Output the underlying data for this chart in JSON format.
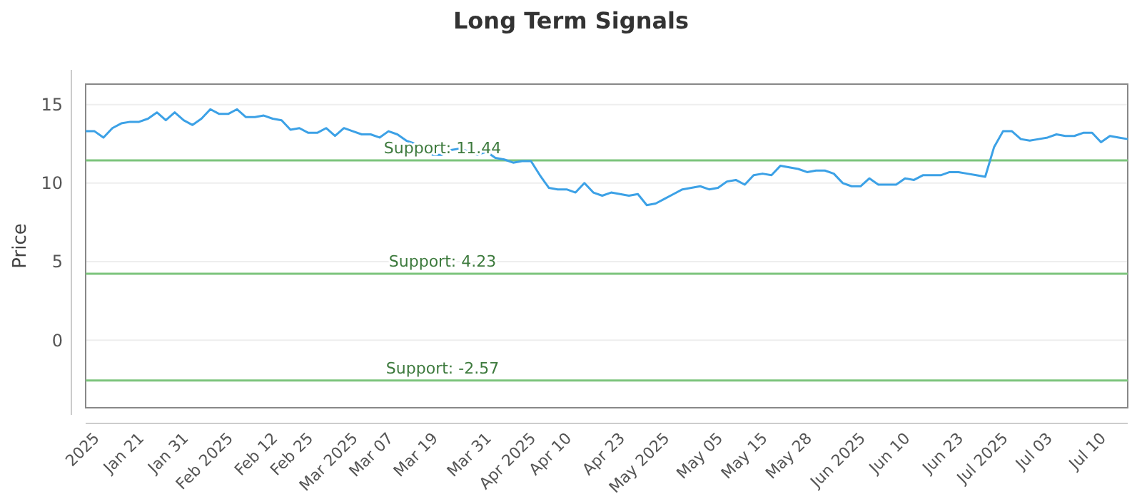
{
  "chart_data": {
    "type": "line",
    "title": "Long Term Signals",
    "ylabel": "Price",
    "categories": [
      null,
      "2025",
      null,
      null,
      null,
      null,
      "Jan 21",
      null,
      null,
      null,
      null,
      "Jan 31",
      null,
      null,
      null,
      null,
      "Feb 2025",
      null,
      null,
      null,
      null,
      "Feb 12",
      null,
      null,
      null,
      "Feb 25",
      null,
      null,
      null,
      null,
      "Mar 2025",
      null,
      null,
      null,
      "Mar 07",
      null,
      null,
      null,
      null,
      "Mar 19",
      null,
      null,
      null,
      null,
      null,
      "Mar 31",
      null,
      null,
      null,
      null,
      "Apr 2025",
      null,
      null,
      null,
      "Apr 10",
      null,
      null,
      null,
      null,
      null,
      "Apr 23",
      null,
      null,
      null,
      null,
      "May 2025",
      null,
      null,
      null,
      null,
      null,
      "May 05",
      null,
      null,
      null,
      null,
      "May 15",
      null,
      null,
      null,
      null,
      "May 28",
      null,
      null,
      null,
      null,
      null,
      "Jun 2025",
      null,
      null,
      null,
      null,
      "Jun 10",
      null,
      null,
      null,
      null,
      null,
      "Jun 23",
      null,
      null,
      null,
      null,
      "Jul 2025",
      null,
      null,
      null,
      null,
      "Jul 03",
      null,
      null,
      null,
      null,
      null,
      "Jul 10",
      null,
      null,
      null
    ],
    "series": [
      {
        "color": "#3ca1e6",
        "values": [
          13.3,
          13.3,
          12.9,
          13.5,
          13.8,
          13.9,
          13.9,
          14.1,
          14.5,
          14.0,
          14.5,
          14.0,
          13.7,
          14.1,
          14.7,
          14.4,
          14.4,
          14.7,
          14.2,
          14.2,
          14.3,
          14.1,
          14.0,
          13.4,
          13.5,
          13.2,
          13.2,
          13.5,
          13.0,
          13.5,
          13.3,
          13.1,
          13.1,
          12.9,
          13.3,
          13.1,
          12.7,
          12.5,
          12.2,
          11.8,
          11.8,
          12.1,
          12.2,
          12.0,
          11.8,
          12.0,
          11.6,
          11.5,
          11.3,
          11.4,
          11.4,
          10.5,
          9.7,
          9.6,
          9.6,
          9.4,
          10.0,
          9.4,
          9.2,
          9.4,
          9.3,
          9.2,
          9.3,
          8.6,
          8.7,
          9.0,
          9.3,
          9.6,
          9.7,
          9.8,
          9.6,
          9.7,
          10.1,
          10.2,
          9.9,
          10.5,
          10.6,
          10.5,
          11.1,
          11.0,
          10.9,
          10.7,
          10.8,
          10.8,
          10.6,
          10.0,
          9.8,
          9.8,
          10.3,
          9.9,
          9.9,
          9.9,
          10.3,
          10.2,
          10.5,
          10.5,
          10.5,
          10.7,
          10.7,
          10.6,
          10.5,
          10.4,
          12.3,
          13.3,
          13.3,
          12.8,
          12.7,
          12.8,
          12.9,
          13.1,
          13.0,
          13.0,
          13.2,
          13.2,
          12.6,
          13.0,
          12.9,
          12.8
        ]
      }
    ],
    "ylim": [
      -4.3,
      16.3
    ],
    "yticks": [
      0,
      5,
      10,
      15
    ],
    "grid": "y",
    "marker": "none",
    "line_style": "solid",
    "ref_lines": [
      {
        "axis": "y",
        "value": 11.44,
        "label": "Support: 11.44",
        "color": "#7cc47c"
      },
      {
        "axis": "y",
        "value": 4.23,
        "label": "Support: 4.23",
        "color": "#7cc47c"
      },
      {
        "axis": "y",
        "value": -2.57,
        "label": "Support: -2.57",
        "color": "#7cc47c"
      }
    ]
  }
}
